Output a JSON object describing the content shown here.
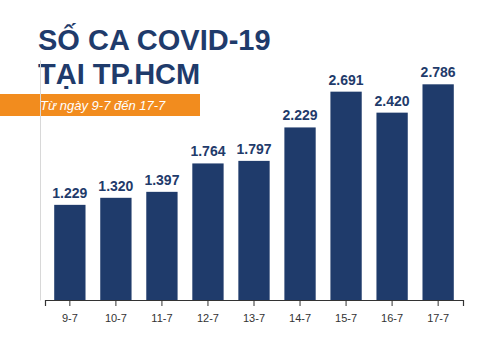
{
  "chart_data": {
    "type": "bar",
    "title": "SỐ CA COVID-19\nTẠI TP.HCM",
    "subtitle": "Từ ngày 9-7 đến 17-7",
    "categories": [
      "9-7",
      "10-7",
      "11-7",
      "12-7",
      "13-7",
      "14-7",
      "15-7",
      "16-7",
      "17-7"
    ],
    "values": [
      1229,
      1320,
      1397,
      1764,
      1797,
      2229,
      2691,
      2420,
      2786
    ],
    "value_labels": [
      "1.229",
      "1.320",
      "1.397",
      "1.764",
      "1.797",
      "2.229",
      "2.691",
      "2.420",
      "2.786"
    ],
    "color": "#1f3b6b",
    "ylim": [
      0,
      3100
    ],
    "yticks": [],
    "grid": false,
    "data_labels": true,
    "tick_labels": "x"
  }
}
